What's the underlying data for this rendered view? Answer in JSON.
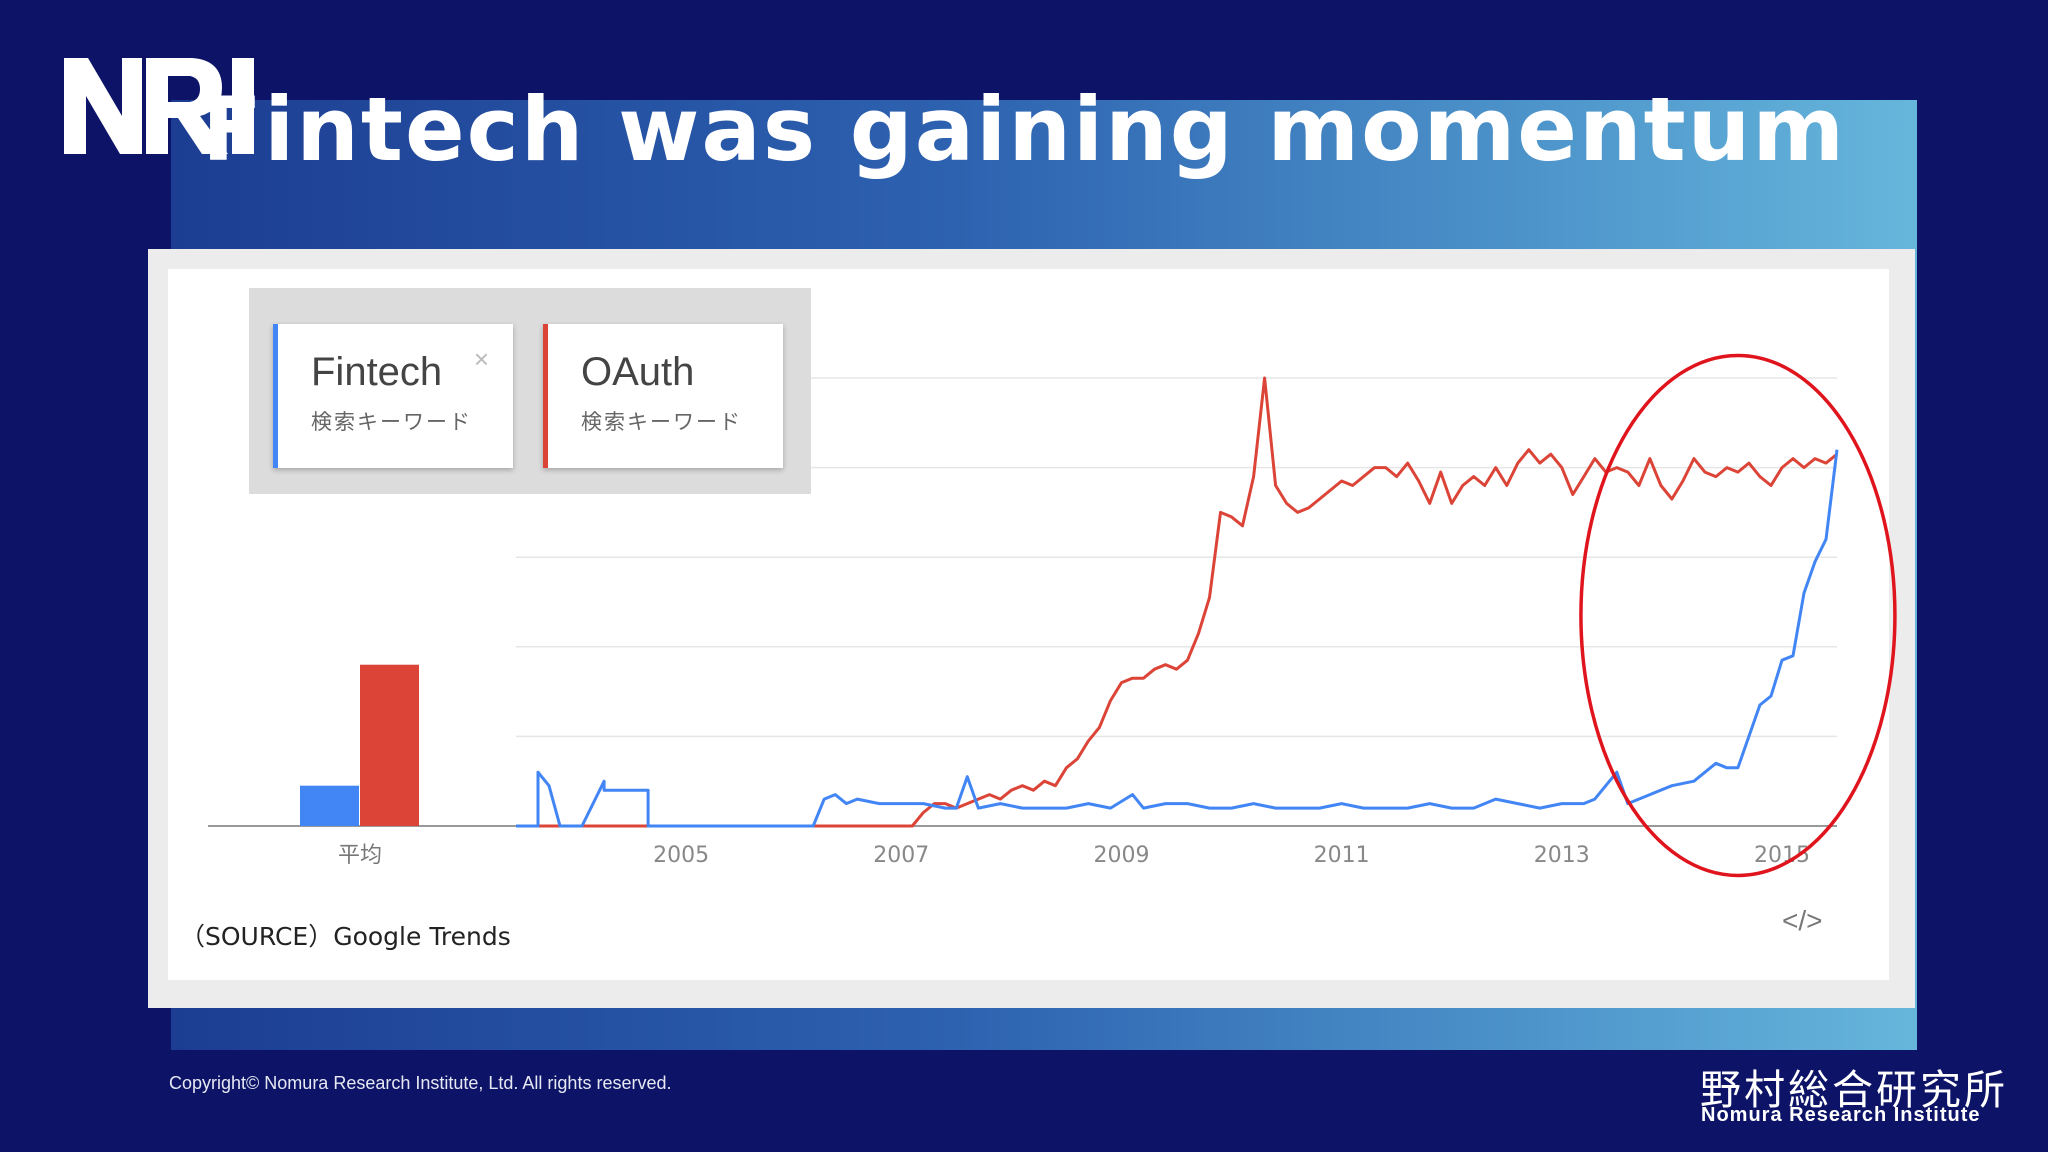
{
  "page": {
    "title": "Fintech was gaining momentum",
    "logo_text": "NRI",
    "source_note": "（SOURCE）Google Trends",
    "embed_icon": "</>",
    "copyright": "Copyright© Nomura Research Institute, Ltd. All rights reserved.",
    "company_jp": "野村総合研究所",
    "company_en": "Nomura Research Institute"
  },
  "legend": {
    "terms": [
      {
        "name": "Fintech",
        "subtitle": "検索キーワード",
        "color": "#4285f4",
        "remove_icon": "×"
      },
      {
        "name": "OAuth",
        "subtitle": "検索キーワード",
        "color": "#db4437"
      }
    ]
  },
  "chart_data": {
    "type": "line",
    "title": "",
    "xlabel": "",
    "ylabel": "",
    "ylim": [
      0,
      100
    ],
    "xlim": [
      2004.0,
      2016.0
    ],
    "x_ticks": [
      "2005",
      "2007",
      "2009",
      "2011",
      "2013",
      "2015"
    ],
    "grid": true,
    "highlight": "ellipse around 2014–2016",
    "average": {
      "label": "平均",
      "values": [
        {
          "series": "Fintech",
          "value": 9
        },
        {
          "series": "OAuth",
          "value": 36
        }
      ]
    },
    "series": [
      {
        "name": "Fintech",
        "color": "#4285f4",
        "points": [
          [
            2004.0,
            0
          ],
          [
            2004.2,
            0
          ],
          [
            2004.2,
            12
          ],
          [
            2004.3,
            9
          ],
          [
            2004.4,
            0
          ],
          [
            2004.6,
            0
          ],
          [
            2004.8,
            10
          ],
          [
            2004.8,
            8
          ],
          [
            2005.0,
            8
          ],
          [
            2005.2,
            8
          ],
          [
            2005.2,
            0
          ],
          [
            2005.5,
            0
          ],
          [
            2005.8,
            0
          ],
          [
            2006.0,
            0
          ],
          [
            2006.2,
            0
          ],
          [
            2006.4,
            0
          ],
          [
            2006.6,
            0
          ],
          [
            2006.7,
            0
          ],
          [
            2006.8,
            6
          ],
          [
            2006.9,
            7
          ],
          [
            2007.0,
            5
          ],
          [
            2007.1,
            6
          ],
          [
            2007.3,
            5
          ],
          [
            2007.5,
            5
          ],
          [
            2007.7,
            5
          ],
          [
            2007.9,
            4
          ],
          [
            2008.0,
            4
          ],
          [
            2008.1,
            11
          ],
          [
            2008.2,
            4
          ],
          [
            2008.4,
            5
          ],
          [
            2008.6,
            4
          ],
          [
            2008.8,
            4
          ],
          [
            2009.0,
            4
          ],
          [
            2009.2,
            5
          ],
          [
            2009.4,
            4
          ],
          [
            2009.6,
            7
          ],
          [
            2009.7,
            4
          ],
          [
            2009.9,
            5
          ],
          [
            2010.1,
            5
          ],
          [
            2010.3,
            4
          ],
          [
            2010.5,
            4
          ],
          [
            2010.7,
            5
          ],
          [
            2010.9,
            4
          ],
          [
            2011.1,
            4
          ],
          [
            2011.3,
            4
          ],
          [
            2011.5,
            5
          ],
          [
            2011.7,
            4
          ],
          [
            2011.9,
            4
          ],
          [
            2012.1,
            4
          ],
          [
            2012.3,
            5
          ],
          [
            2012.5,
            4
          ],
          [
            2012.7,
            4
          ],
          [
            2012.9,
            6
          ],
          [
            2013.1,
            5
          ],
          [
            2013.3,
            4
          ],
          [
            2013.5,
            5
          ],
          [
            2013.7,
            5
          ],
          [
            2013.8,
            6
          ],
          [
            2014.0,
            12
          ],
          [
            2014.1,
            5
          ],
          [
            2014.3,
            7
          ],
          [
            2014.5,
            9
          ],
          [
            2014.7,
            10
          ],
          [
            2014.9,
            14
          ],
          [
            2015.0,
            13
          ],
          [
            2015.1,
            13
          ],
          [
            2015.2,
            20
          ],
          [
            2015.3,
            27
          ],
          [
            2015.4,
            29
          ],
          [
            2015.5,
            37
          ],
          [
            2015.6,
            38
          ],
          [
            2015.7,
            52
          ],
          [
            2015.8,
            59
          ],
          [
            2015.9,
            64
          ],
          [
            2016.0,
            84
          ]
        ]
      },
      {
        "name": "OAuth",
        "color": "#db4437",
        "points": [
          [
            2004.0,
            0
          ],
          [
            2004.5,
            0
          ],
          [
            2005.0,
            0
          ],
          [
            2005.5,
            0
          ],
          [
            2006.0,
            0
          ],
          [
            2006.5,
            0
          ],
          [
            2007.0,
            0
          ],
          [
            2007.4,
            0
          ],
          [
            2007.6,
            0
          ],
          [
            2007.7,
            3
          ],
          [
            2007.8,
            5
          ],
          [
            2007.9,
            5
          ],
          [
            2008.0,
            4
          ],
          [
            2008.1,
            5
          ],
          [
            2008.2,
            6
          ],
          [
            2008.3,
            7
          ],
          [
            2008.4,
            6
          ],
          [
            2008.5,
            8
          ],
          [
            2008.6,
            9
          ],
          [
            2008.7,
            8
          ],
          [
            2008.8,
            10
          ],
          [
            2008.9,
            9
          ],
          [
            2009.0,
            13
          ],
          [
            2009.1,
            15
          ],
          [
            2009.2,
            19
          ],
          [
            2009.3,
            22
          ],
          [
            2009.4,
            28
          ],
          [
            2009.5,
            32
          ],
          [
            2009.6,
            33
          ],
          [
            2009.7,
            33
          ],
          [
            2009.8,
            35
          ],
          [
            2009.9,
            36
          ],
          [
            2010.0,
            35
          ],
          [
            2010.1,
            37
          ],
          [
            2010.2,
            43
          ],
          [
            2010.3,
            51
          ],
          [
            2010.4,
            70
          ],
          [
            2010.5,
            69
          ],
          [
            2010.6,
            67
          ],
          [
            2010.7,
            78
          ],
          [
            2010.8,
            100
          ],
          [
            2010.9,
            76
          ],
          [
            2011.0,
            72
          ],
          [
            2011.1,
            70
          ],
          [
            2011.2,
            71
          ],
          [
            2011.3,
            73
          ],
          [
            2011.5,
            77
          ],
          [
            2011.6,
            76
          ],
          [
            2011.8,
            80
          ],
          [
            2011.9,
            80
          ],
          [
            2012.0,
            78
          ],
          [
            2012.1,
            81
          ],
          [
            2012.2,
            77
          ],
          [
            2012.3,
            72
          ],
          [
            2012.4,
            79
          ],
          [
            2012.5,
            72
          ],
          [
            2012.6,
            76
          ],
          [
            2012.7,
            78
          ],
          [
            2012.8,
            76
          ],
          [
            2012.9,
            80
          ],
          [
            2013.0,
            76
          ],
          [
            2013.1,
            81
          ],
          [
            2013.2,
            84
          ],
          [
            2013.3,
            81
          ],
          [
            2013.4,
            83
          ],
          [
            2013.5,
            80
          ],
          [
            2013.6,
            74
          ],
          [
            2013.7,
            78
          ],
          [
            2013.8,
            82
          ],
          [
            2013.9,
            79
          ],
          [
            2014.0,
            80
          ],
          [
            2014.1,
            79
          ],
          [
            2014.2,
            76
          ],
          [
            2014.3,
            82
          ],
          [
            2014.4,
            76
          ],
          [
            2014.5,
            73
          ],
          [
            2014.6,
            77
          ],
          [
            2014.7,
            82
          ],
          [
            2014.8,
            79
          ],
          [
            2014.9,
            78
          ],
          [
            2015.0,
            80
          ],
          [
            2015.1,
            79
          ],
          [
            2015.2,
            81
          ],
          [
            2015.3,
            78
          ],
          [
            2015.4,
            76
          ],
          [
            2015.5,
            80
          ],
          [
            2015.6,
            82
          ],
          [
            2015.7,
            80
          ],
          [
            2015.8,
            82
          ],
          [
            2015.9,
            81
          ],
          [
            2016.0,
            83
          ]
        ]
      }
    ]
  }
}
